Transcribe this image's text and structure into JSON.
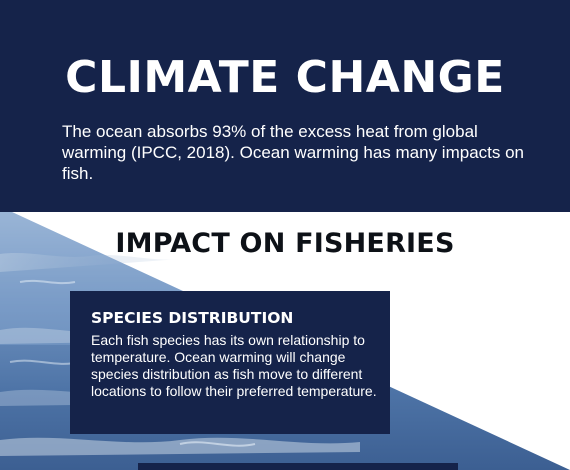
{
  "header": {
    "title": "CLIMATE CHANGE",
    "intro": "The ocean absorbs 93% of the excess heat from global warming (IPCC, 2018). Ocean warming has many impacts on fish."
  },
  "impact": {
    "heading": "IMPACT ON FISHERIES",
    "cards": [
      {
        "title": "SPECIES DISTRIBUTION",
        "body": "Each fish species has its own relationship to temperature. Ocean warming will change species distribution as fish move to different locations to follow their preferred temperature."
      }
    ]
  },
  "colors": {
    "navy": "#15234a",
    "heading_text": "#0d1117",
    "body_text": "#ffffff"
  }
}
